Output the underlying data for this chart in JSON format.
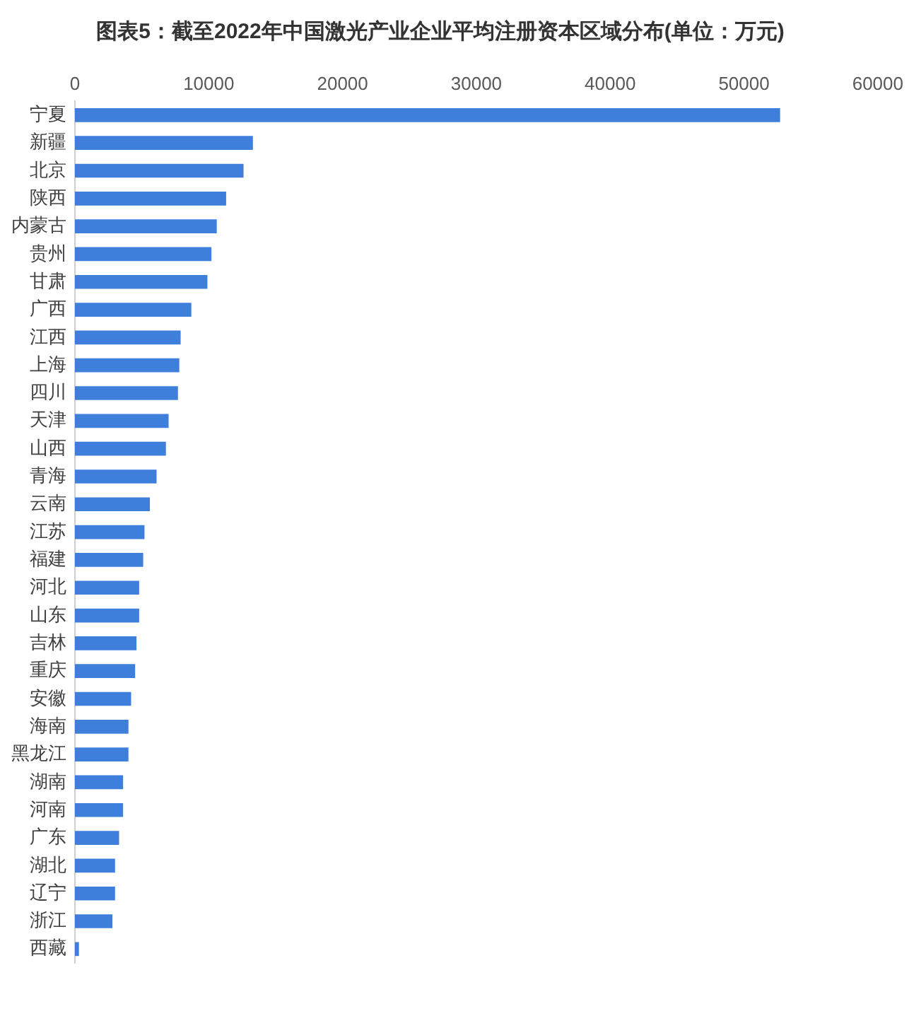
{
  "chart_data": {
    "type": "bar",
    "orientation": "horizontal",
    "title": "图表5：截至2022年中国激光产业企业平均注册资本区域分布(单位：万元)",
    "categories": [
      "宁夏",
      "新疆",
      "北京",
      "陕西",
      "内蒙古",
      "贵州",
      "甘肃",
      "广西",
      "江西",
      "上海",
      "四川",
      "天津",
      "山西",
      "青海",
      "云南",
      "江苏",
      "福建",
      "河北",
      "山东",
      "吉林",
      "重庆",
      "安徽",
      "海南",
      "黑龙江",
      "湖南",
      "河南",
      "广东",
      "湖北",
      "辽宁",
      "浙江",
      "西藏"
    ],
    "values": [
      52700,
      13300,
      12600,
      11300,
      10600,
      10200,
      9900,
      8700,
      7900,
      7800,
      7700,
      7000,
      6800,
      6100,
      5600,
      5200,
      5100,
      4800,
      4800,
      4600,
      4500,
      4200,
      4000,
      4000,
      3600,
      3600,
      3300,
      3000,
      3000,
      2800,
      300
    ],
    "color": "#3f7fdc",
    "xlim": [
      0,
      60000
    ],
    "xticks": [
      0,
      10000,
      20000,
      30000,
      40000,
      50000,
      60000
    ],
    "grid": false
  }
}
